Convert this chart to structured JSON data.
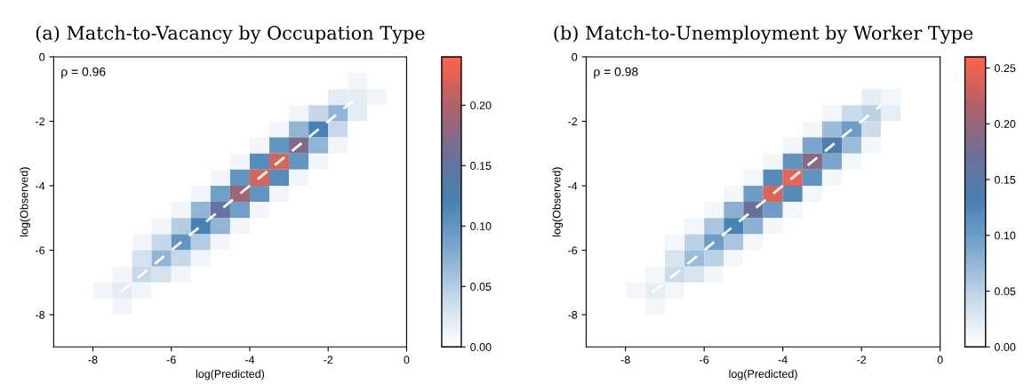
{
  "chart_data": [
    {
      "type": "heatmap",
      "title": "(a) Match-to-Vacancy by Occupation Type",
      "xlabel": "log(Predicted)",
      "ylabel": "log(Observed)",
      "x": [
        -8.75,
        -8.25,
        -7.75,
        -7.25,
        -6.75,
        -6.25,
        -5.75,
        -5.25,
        -4.75,
        -4.25,
        -3.75,
        -3.25,
        -2.75,
        -2.25,
        -1.75,
        -1.25,
        -0.75,
        -0.25
      ],
      "y": [
        -0.25,
        -0.75,
        -1.25,
        -1.75,
        -2.25,
        -2.75,
        -3.25,
        -3.75,
        -4.25,
        -4.75,
        -5.25,
        -5.75,
        -6.25,
        -6.75,
        -7.25,
        -7.75,
        -8.25,
        -8.75
      ],
      "xlim": [
        -9,
        0
      ],
      "ylim": [
        -9,
        0
      ],
      "xticks": [
        -8,
        -6,
        -4,
        -2,
        0
      ],
      "yticks": [
        -8,
        -6,
        -4,
        -2,
        0
      ],
      "clim": [
        0,
        0.24
      ],
      "cticks": [
        {
          "value": 0,
          "label": "0.00"
        },
        0.05,
        {
          "value": 0.1,
          "label": "0.10"
        },
        0.15,
        {
          "value": 0.2,
          "label": "0.20"
        }
      ],
      "cells": [
        [
          0,
          0,
          0,
          0,
          0,
          0,
          0,
          0,
          0,
          0,
          0,
          0,
          0,
          0,
          0,
          0,
          0,
          0
        ],
        [
          0,
          0,
          0,
          0,
          0,
          0,
          0,
          0,
          0,
          0,
          0,
          0,
          0,
          0,
          0,
          0.01,
          0,
          0
        ],
        [
          0,
          0,
          0,
          0,
          0,
          0,
          0,
          0,
          0,
          0,
          0,
          0,
          0,
          0,
          0.02,
          0.02,
          0.01,
          0
        ],
        [
          0,
          0,
          0,
          0,
          0,
          0,
          0,
          0,
          0,
          0,
          0,
          0,
          0.01,
          0.04,
          0.07,
          0.02,
          0,
          0
        ],
        [
          0,
          0,
          0,
          0,
          0,
          0,
          0,
          0,
          0,
          0,
          0,
          0.01,
          0.07,
          0.12,
          0.04,
          0,
          0,
          0
        ],
        [
          0,
          0,
          0,
          0,
          0,
          0,
          0,
          0,
          0,
          0,
          0.01,
          0.1,
          0.17,
          0.07,
          0.01,
          0,
          0,
          0
        ],
        [
          0,
          0,
          0,
          0,
          0,
          0,
          0,
          0,
          0,
          0.01,
          0.11,
          0.22,
          0.1,
          0.01,
          0,
          0,
          0,
          0
        ],
        [
          0,
          0,
          0,
          0,
          0,
          0,
          0,
          0,
          0.01,
          0.1,
          0.22,
          0.11,
          0.01,
          0,
          0,
          0,
          0,
          0
        ],
        [
          0,
          0,
          0,
          0,
          0,
          0,
          0,
          0.01,
          0.09,
          0.19,
          0.1,
          0.01,
          0,
          0,
          0,
          0,
          0,
          0
        ],
        [
          0,
          0,
          0,
          0,
          0,
          0,
          0.01,
          0.07,
          0.15,
          0.09,
          0.01,
          0,
          0,
          0,
          0,
          0,
          0,
          0
        ],
        [
          0,
          0,
          0,
          0,
          0,
          0.01,
          0.05,
          0.12,
          0.07,
          0.01,
          0,
          0,
          0,
          0,
          0,
          0,
          0,
          0
        ],
        [
          0,
          0,
          0,
          0,
          0.01,
          0.04,
          0.1,
          0.05,
          0.01,
          0,
          0,
          0,
          0,
          0,
          0,
          0,
          0,
          0
        ],
        [
          0,
          0,
          0,
          0,
          0.03,
          0.07,
          0.04,
          0.01,
          0,
          0,
          0,
          0,
          0,
          0,
          0,
          0,
          0,
          0
        ],
        [
          0,
          0,
          0,
          0.01,
          0.04,
          0.03,
          0.01,
          0,
          0,
          0,
          0,
          0,
          0,
          0,
          0,
          0,
          0,
          0
        ],
        [
          0,
          0,
          0.01,
          0.02,
          0.01,
          0,
          0,
          0,
          0,
          0,
          0,
          0,
          0,
          0,
          0,
          0,
          0,
          0
        ],
        [
          0,
          0,
          0,
          0.01,
          0,
          0,
          0,
          0,
          0,
          0,
          0,
          0,
          0,
          0,
          0,
          0,
          0,
          0
        ],
        [
          0,
          0,
          0,
          0,
          0,
          0,
          0,
          0,
          0,
          0,
          0,
          0,
          0,
          0,
          0,
          0,
          0,
          0
        ],
        [
          0,
          0,
          0,
          0,
          0,
          0,
          0,
          0,
          0,
          0,
          0,
          0,
          0,
          0,
          0,
          0,
          0,
          0
        ]
      ],
      "series": [
        {
          "type": "line",
          "color": "#ffffff",
          "line_style": "dashed",
          "x": [
            -7.3,
            -1.2
          ],
          "values": [
            -7.3,
            -1.2
          ]
        }
      ],
      "annotations": [
        "ρ = 0.96"
      ]
    },
    {
      "type": "heatmap",
      "title": "(b) Match-to-Unemployment by Worker Type",
      "xlabel": "log(Predicted)",
      "ylabel": "log(Observed)",
      "x": [
        -8.75,
        -8.25,
        -7.75,
        -7.25,
        -6.75,
        -6.25,
        -5.75,
        -5.25,
        -4.75,
        -4.25,
        -3.75,
        -3.25,
        -2.75,
        -2.25,
        -1.75,
        -1.25,
        -0.75,
        -0.25
      ],
      "y": [
        -0.25,
        -0.75,
        -1.25,
        -1.75,
        -2.25,
        -2.75,
        -3.25,
        -3.75,
        -4.25,
        -4.75,
        -5.25,
        -5.75,
        -6.25,
        -6.75,
        -7.25,
        -7.75,
        -8.25,
        -8.75
      ],
      "xlim": [
        -9,
        0
      ],
      "ylim": [
        -9,
        0
      ],
      "xticks": [
        -8,
        -6,
        -4,
        -2,
        0
      ],
      "yticks": [
        -8,
        -6,
        -4,
        -2,
        0
      ],
      "clim": [
        0,
        0.26
      ],
      "cticks": [
        {
          "value": 0,
          "label": "0.00"
        },
        0.05,
        {
          "value": 0.1,
          "label": "0.10"
        },
        0.15,
        {
          "value": 0.2,
          "label": "0.20"
        },
        0.25
      ],
      "cells": [
        [
          0,
          0,
          0,
          0,
          0,
          0,
          0,
          0,
          0,
          0,
          0,
          0,
          0,
          0,
          0,
          0,
          0,
          0
        ],
        [
          0,
          0,
          0,
          0,
          0,
          0,
          0,
          0,
          0,
          0,
          0,
          0,
          0,
          0,
          0,
          0,
          0,
          0
        ],
        [
          0,
          0,
          0,
          0,
          0,
          0,
          0,
          0,
          0,
          0,
          0,
          0,
          0,
          0,
          0.02,
          0.01,
          0,
          0
        ],
        [
          0,
          0,
          0,
          0,
          0,
          0,
          0,
          0,
          0,
          0,
          0,
          0,
          0.01,
          0.04,
          0.05,
          0.02,
          0,
          0
        ],
        [
          0,
          0,
          0,
          0,
          0,
          0,
          0,
          0,
          0,
          0,
          0,
          0.01,
          0.07,
          0.1,
          0.04,
          0,
          0,
          0
        ],
        [
          0,
          0,
          0,
          0,
          0,
          0,
          0,
          0,
          0,
          0,
          0.01,
          0.09,
          0.14,
          0.07,
          0.01,
          0,
          0,
          0
        ],
        [
          0,
          0,
          0,
          0,
          0,
          0,
          0,
          0,
          0,
          0.01,
          0.11,
          0.19,
          0.09,
          0.01,
          0,
          0,
          0,
          0
        ],
        [
          0,
          0,
          0,
          0,
          0,
          0,
          0,
          0,
          0.01,
          0.12,
          0.25,
          0.11,
          0.01,
          0,
          0,
          0,
          0,
          0
        ],
        [
          0,
          0,
          0,
          0,
          0,
          0,
          0,
          0.01,
          0.1,
          0.24,
          0.12,
          0.01,
          0,
          0,
          0,
          0,
          0,
          0
        ],
        [
          0,
          0,
          0,
          0,
          0,
          0,
          0.01,
          0.08,
          0.17,
          0.1,
          0.01,
          0,
          0,
          0,
          0,
          0,
          0,
          0
        ],
        [
          0,
          0,
          0,
          0,
          0,
          0.01,
          0.06,
          0.13,
          0.08,
          0.01,
          0,
          0,
          0,
          0,
          0,
          0,
          0,
          0
        ],
        [
          0,
          0,
          0,
          0,
          0.01,
          0.05,
          0.1,
          0.06,
          0.01,
          0,
          0,
          0,
          0,
          0,
          0,
          0,
          0,
          0
        ],
        [
          0,
          0,
          0,
          0,
          0.03,
          0.07,
          0.05,
          0.01,
          0,
          0,
          0,
          0,
          0,
          0,
          0,
          0,
          0,
          0
        ],
        [
          0,
          0,
          0,
          0.01,
          0.04,
          0.03,
          0.01,
          0,
          0,
          0,
          0,
          0,
          0,
          0,
          0,
          0,
          0,
          0
        ],
        [
          0,
          0,
          0.01,
          0.02,
          0.01,
          0,
          0,
          0,
          0,
          0,
          0,
          0,
          0,
          0,
          0,
          0,
          0,
          0
        ],
        [
          0,
          0,
          0,
          0.01,
          0,
          0,
          0,
          0,
          0,
          0,
          0,
          0,
          0,
          0,
          0,
          0,
          0,
          0
        ],
        [
          0,
          0,
          0,
          0,
          0,
          0,
          0,
          0,
          0,
          0,
          0,
          0,
          0,
          0,
          0,
          0,
          0,
          0
        ],
        [
          0,
          0,
          0,
          0,
          0,
          0,
          0,
          0,
          0,
          0,
          0,
          0,
          0,
          0,
          0,
          0,
          0,
          0
        ]
      ],
      "series": [
        {
          "type": "line",
          "color": "#ffffff",
          "line_style": "dashed",
          "x": [
            -7.3,
            -1.5
          ],
          "values": [
            -7.3,
            -1.5
          ]
        }
      ],
      "annotations": [
        "ρ = 0.98"
      ]
    }
  ]
}
